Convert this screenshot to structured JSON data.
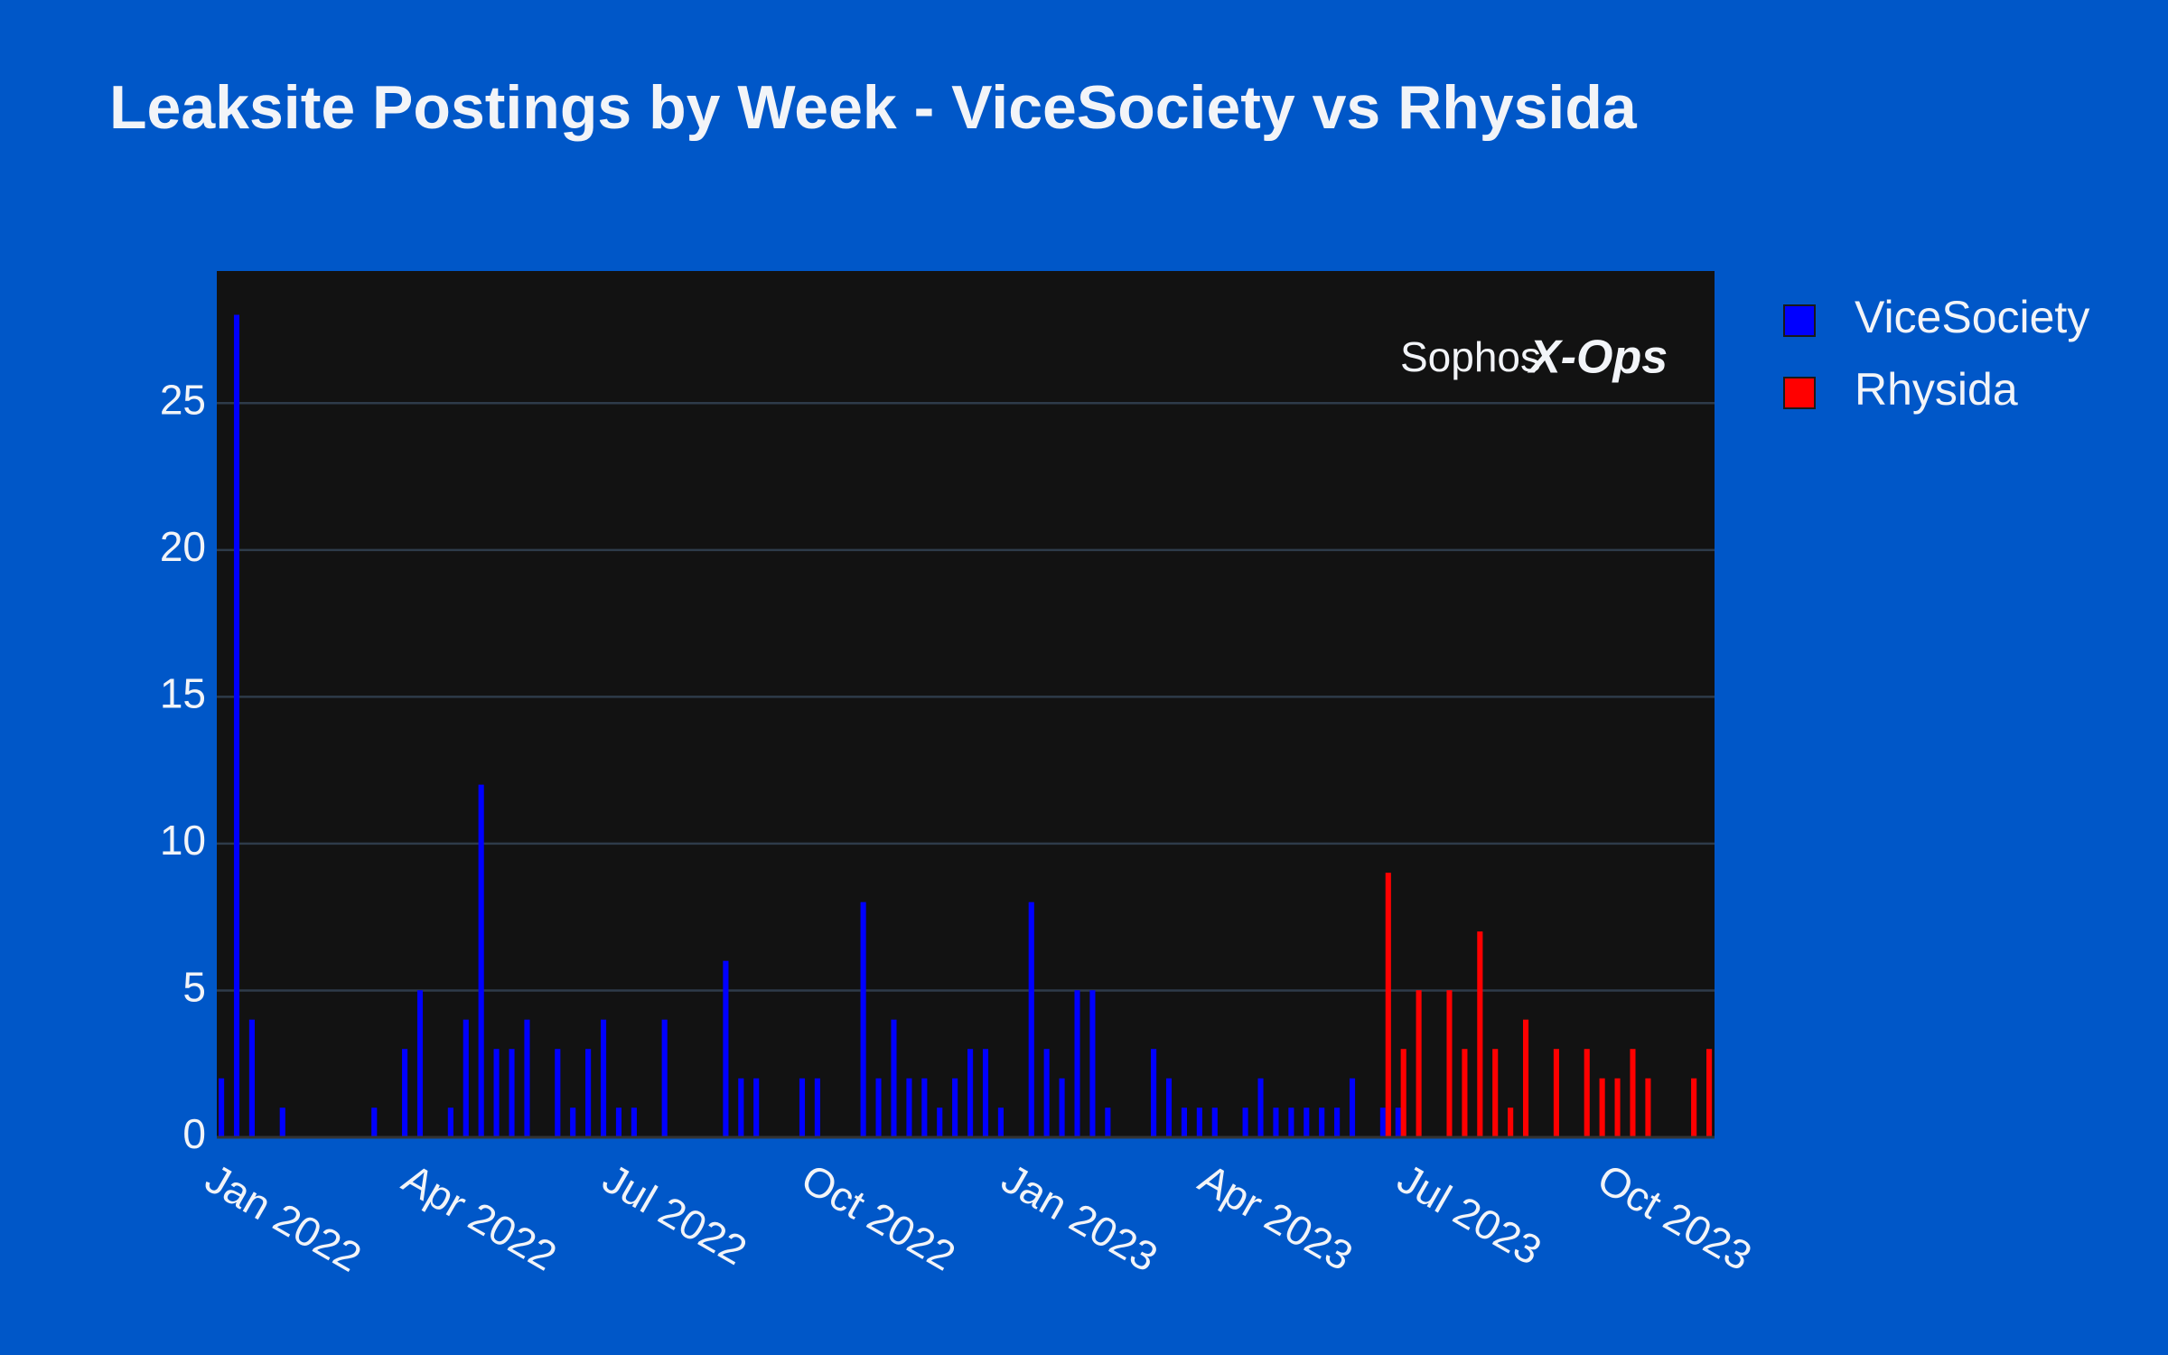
{
  "chart_data": {
    "type": "bar",
    "title": "Leaksite Postings by Week - ViceSociety vs Rhysida",
    "logo": {
      "brand": "Sophos",
      "mark": "X-Ops"
    },
    "categories": [
      null,
      null,
      null,
      null,
      null,
      null,
      null,
      null,
      null,
      null,
      null,
      null,
      null,
      null,
      null,
      null,
      null,
      null,
      null,
      null,
      null,
      null,
      null,
      null,
      null,
      null,
      null,
      null,
      null,
      null,
      null,
      null,
      null,
      null,
      null,
      null,
      null,
      null,
      null,
      null,
      null,
      null,
      null,
      null,
      null,
      null,
      null,
      null,
      null,
      null,
      null,
      null,
      null,
      null,
      null,
      null,
      null,
      null,
      null,
      null,
      null,
      null,
      null,
      null,
      null,
      null,
      null,
      null,
      null,
      null,
      null,
      null,
      null,
      null,
      null,
      null,
      null,
      null,
      null,
      null,
      null,
      null,
      null,
      null,
      null,
      null,
      null,
      null,
      null,
      null,
      null,
      null,
      null,
      null,
      null,
      null,
      null,
      null
    ],
    "series": [
      {
        "name": "ViceSociety",
        "color": "#0000ff",
        "values": [
          2,
          28,
          4,
          0,
          1,
          0,
          0,
          0,
          0,
          0,
          1,
          0,
          3,
          5,
          0,
          1,
          4,
          12,
          3,
          3,
          4,
          0,
          3,
          1,
          3,
          4,
          1,
          1,
          0,
          4,
          0,
          0,
          0,
          6,
          2,
          2,
          0,
          0,
          2,
          2,
          0,
          0,
          8,
          2,
          4,
          2,
          2,
          1,
          2,
          3,
          3,
          1,
          0,
          8,
          3,
          2,
          5,
          5,
          1,
          0,
          0,
          3,
          2,
          1,
          1,
          1,
          0,
          1,
          2,
          1,
          1,
          1,
          1,
          1,
          2,
          0,
          1,
          1,
          0,
          0,
          0,
          0,
          0,
          0,
          0,
          0,
          0,
          0,
          0,
          0,
          0,
          0,
          0,
          0,
          0,
          0,
          0,
          0
        ]
      },
      {
        "name": "Rhysida",
        "color": "#ff0000",
        "values": [
          0,
          0,
          0,
          0,
          0,
          0,
          0,
          0,
          0,
          0,
          0,
          0,
          0,
          0,
          0,
          0,
          0,
          0,
          0,
          0,
          0,
          0,
          0,
          0,
          0,
          0,
          0,
          0,
          0,
          0,
          0,
          0,
          0,
          0,
          0,
          0,
          0,
          0,
          0,
          0,
          0,
          0,
          0,
          0,
          0,
          0,
          0,
          0,
          0,
          0,
          0,
          0,
          0,
          0,
          0,
          0,
          0,
          0,
          0,
          0,
          0,
          0,
          0,
          0,
          0,
          0,
          0,
          0,
          0,
          0,
          0,
          0,
          0,
          0,
          0,
          0,
          9,
          3,
          5,
          0,
          5,
          3,
          7,
          3,
          1,
          4,
          0,
          3,
          0,
          3,
          2,
          2,
          3,
          2,
          0,
          0,
          2,
          3
        ]
      }
    ],
    "xlim": [
      0,
      98
    ],
    "xticks": [
      {
        "value": 0,
        "label": "Jan 2022"
      },
      {
        "value": 12.9,
        "label": "Apr 2022"
      },
      {
        "value": 26,
        "label": "Jul 2022"
      },
      {
        "value": 39,
        "label": "Oct 2022"
      },
      {
        "value": 52.1,
        "label": "Jan 2023"
      },
      {
        "value": 65,
        "label": "Apr 2023"
      },
      {
        "value": 78,
        "label": "Jul 2023"
      },
      {
        "value": 91.1,
        "label": "Oct 2023"
      }
    ],
    "ylim": [
      0,
      29.5
    ],
    "yticks": [
      0,
      5,
      10,
      15,
      20,
      25
    ],
    "grid": true,
    "legend": "outside-right"
  }
}
